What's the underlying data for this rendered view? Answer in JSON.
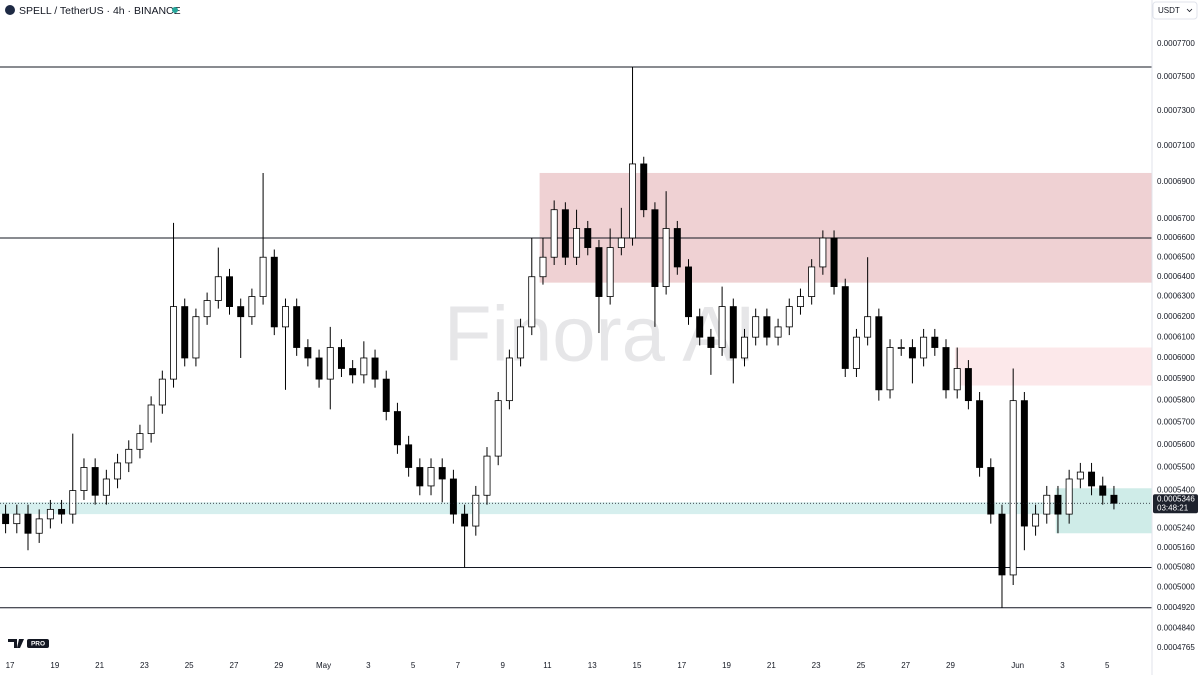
{
  "header": {
    "symbol": "SPELL / TetherUS · 4h · BINANCE",
    "currency": "USDT",
    "badge": "PRO"
  },
  "chart_data": {
    "type": "candlestick",
    "watermark": "Finora AI",
    "log_scale": true,
    "grid": false,
    "up_color": "#ffffff",
    "down_color": "#000000",
    "outline_color": "#000000",
    "xlim": [
      -0.5,
      102.4
    ],
    "xticks": [
      {
        "value": 0.4,
        "label": "17"
      },
      {
        "value": 4.4,
        "label": "19"
      },
      {
        "value": 8.4,
        "label": "21"
      },
      {
        "value": 12.4,
        "label": "23"
      },
      {
        "value": 16.4,
        "label": "25"
      },
      {
        "value": 20.4,
        "label": "27"
      },
      {
        "value": 24.4,
        "label": "29"
      },
      {
        "value": 28.4,
        "label": "May"
      },
      {
        "value": 32.4,
        "label": "3"
      },
      {
        "value": 36.4,
        "label": "5"
      },
      {
        "value": 40.4,
        "label": "7"
      },
      {
        "value": 44.4,
        "label": "9"
      },
      {
        "value": 48.4,
        "label": "11"
      },
      {
        "value": 52.4,
        "label": "13"
      },
      {
        "value": 56.4,
        "label": "15"
      },
      {
        "value": 60.4,
        "label": "17"
      },
      {
        "value": 64.4,
        "label": "19"
      },
      {
        "value": 68.4,
        "label": "21"
      },
      {
        "value": 72.4,
        "label": "23"
      },
      {
        "value": 76.4,
        "label": "25"
      },
      {
        "value": 80.4,
        "label": "27"
      },
      {
        "value": 84.4,
        "label": "29"
      },
      {
        "value": 90.4,
        "label": "Jun"
      },
      {
        "value": 94.4,
        "label": "3"
      },
      {
        "value": 98.4,
        "label": "5"
      }
    ],
    "ylim": [
      0.000472,
      0.0007848
    ],
    "yticks": [
      {
        "value": 0.00077,
        "label": "0.0007700"
      },
      {
        "value": 0.00075,
        "label": "0.0007500"
      },
      {
        "value": 0.00073,
        "label": "0.0007300"
      },
      {
        "value": 0.00071,
        "label": "0.0007100"
      },
      {
        "value": 0.00069,
        "label": "0.0006900"
      },
      {
        "value": 0.00067,
        "label": "0.0006700"
      },
      {
        "value": 0.00066,
        "label": "0.0006600"
      },
      {
        "value": 0.00065,
        "label": "0.0006500"
      },
      {
        "value": 0.00064,
        "label": "0.0006400"
      },
      {
        "value": 0.00063,
        "label": "0.0006300"
      },
      {
        "value": 0.00062,
        "label": "0.0006200"
      },
      {
        "value": 0.00061,
        "label": "0.0006100"
      },
      {
        "value": 0.0006,
        "label": "0.0006000"
      },
      {
        "value": 0.00059,
        "label": "0.0005900"
      },
      {
        "value": 0.00058,
        "label": "0.0005800"
      },
      {
        "value": 0.00057,
        "label": "0.0005700"
      },
      {
        "value": 0.00056,
        "label": "0.0005600"
      },
      {
        "value": 0.00055,
        "label": "0.0005500"
      },
      {
        "value": 0.00054,
        "label": "0.0005400"
      },
      {
        "value": 0.000524,
        "label": "0.0005240"
      },
      {
        "value": 0.000516,
        "label": "0.0005160"
      },
      {
        "value": 0.000508,
        "label": "0.0005080"
      },
      {
        "value": 0.0005,
        "label": "0.0005000"
      },
      {
        "value": 0.000492,
        "label": "0.0004920"
      },
      {
        "value": 0.000484,
        "label": "0.0004840"
      },
      {
        "value": 0.0004765,
        "label": "0.0004765"
      }
    ],
    "open": [
      0.00053,
      0.000526,
      0.00053,
      0.000522,
      0.000528,
      0.000532,
      0.00053,
      0.00054,
      0.00055,
      0.000538,
      0.000545,
      0.000552,
      0.000558,
      0.000565,
      0.000578,
      0.00059,
      0.000625,
      0.0006,
      0.00062,
      0.000628,
      0.00064,
      0.000625,
      0.00062,
      0.00063,
      0.00065,
      0.000615,
      0.000625,
      0.000605,
      0.0006,
      0.00059,
      0.000605,
      0.000595,
      0.000592,
      0.0006,
      0.00059,
      0.000575,
      0.00056,
      0.00055,
      0.000542,
      0.00055,
      0.000545,
      0.00053,
      0.000525,
      0.000538,
      0.000555,
      0.00058,
      0.0006,
      0.000615,
      0.00064,
      0.00065,
      0.000675,
      0.00065,
      0.000665,
      0.000655,
      0.00063,
      0.000655,
      0.00066,
      0.0007,
      0.000675,
      0.000635,
      0.000665,
      0.000645,
      0.00062,
      0.00061,
      0.000605,
      0.000625,
      0.0006,
      0.00061,
      0.00062,
      0.00061,
      0.000615,
      0.000625,
      0.00063,
      0.000645,
      0.00066,
      0.000635,
      0.000595,
      0.00061,
      0.00062,
      0.000585,
      0.000605,
      0.000605,
      0.0006,
      0.00061,
      0.000605,
      0.000585,
      0.000595,
      0.00058,
      0.00055,
      0.00053,
      0.000505,
      0.00058,
      0.000525,
      0.00053,
      0.000538,
      0.00053,
      0.000545,
      0.000548,
      0.000542,
      0.000538
    ],
    "high": [
      0.000534,
      0.000534,
      0.000534,
      0.000532,
      0.000536,
      0.000536,
      0.000565,
      0.000554,
      0.000554,
      0.000549,
      0.000556,
      0.000562,
      0.000569,
      0.000582,
      0.000594,
      0.000668,
      0.000629,
      0.000624,
      0.000632,
      0.000655,
      0.000644,
      0.000629,
      0.000634,
      0.000695,
      0.000654,
      0.000629,
      0.000629,
      0.000609,
      0.000604,
      0.000615,
      0.000609,
      0.000599,
      0.000608,
      0.000604,
      0.000594,
      0.000579,
      0.000564,
      0.000554,
      0.000554,
      0.000554,
      0.000549,
      0.000534,
      0.000542,
      0.000559,
      0.000584,
      0.000604,
      0.000619,
      0.00066,
      0.00066,
      0.00068,
      0.000679,
      0.000675,
      0.000669,
      0.000659,
      0.000665,
      0.000676,
      0.000756,
      0.000704,
      0.000679,
      0.000685,
      0.000669,
      0.000649,
      0.000624,
      0.000614,
      0.000635,
      0.000629,
      0.000614,
      0.000624,
      0.000624,
      0.000619,
      0.000629,
      0.000634,
      0.000649,
      0.000664,
      0.000664,
      0.000639,
      0.000614,
      0.00065,
      0.000624,
      0.000609,
      0.000609,
      0.000609,
      0.000614,
      0.000614,
      0.000609,
      0.000605,
      0.000599,
      0.000584,
      0.000554,
      0.000534,
      0.000595,
      0.000584,
      0.000534,
      0.000542,
      0.000542,
      0.000549,
      0.000552,
      0.000552,
      0.000546,
      0.000542
    ],
    "low": [
      0.000522,
      0.000522,
      0.000515,
      0.000518,
      0.000524,
      0.000526,
      0.000526,
      0.000536,
      0.000534,
      0.000534,
      0.000541,
      0.000548,
      0.000554,
      0.000561,
      0.000574,
      0.000586,
      0.000596,
      0.000596,
      0.000616,
      0.000624,
      0.000621,
      0.0006,
      0.000616,
      0.000626,
      0.000611,
      0.000585,
      0.000601,
      0.000596,
      0.000586,
      0.000576,
      0.000591,
      0.000588,
      0.000588,
      0.000586,
      0.000571,
      0.000556,
      0.000546,
      0.000538,
      0.000538,
      0.000535,
      0.000526,
      0.000508,
      0.000521,
      0.000534,
      0.000551,
      0.000576,
      0.000596,
      0.000611,
      0.000636,
      0.000646,
      0.000646,
      0.000646,
      0.000651,
      0.000612,
      0.000626,
      0.000651,
      0.000656,
      0.000671,
      0.000615,
      0.000631,
      0.000641,
      0.000616,
      0.000606,
      0.000592,
      0.000601,
      0.000588,
      0.000596,
      0.000606,
      0.000606,
      0.000606,
      0.000611,
      0.000621,
      0.000626,
      0.000641,
      0.000631,
      0.000591,
      0.000591,
      0.000606,
      0.00058,
      0.000581,
      0.000601,
      0.000588,
      0.000596,
      0.000601,
      0.000581,
      0.000581,
      0.000576,
      0.000546,
      0.000526,
      0.000492,
      0.000501,
      0.000515,
      0.000521,
      0.000526,
      0.000522,
      0.000526,
      0.000541,
      0.000538,
      0.000534,
      0.000532
    ],
    "close": [
      0.000526,
      0.00053,
      0.000522,
      0.000528,
      0.000532,
      0.00053,
      0.00054,
      0.00055,
      0.000538,
      0.000545,
      0.000552,
      0.000558,
      0.000565,
      0.000578,
      0.00059,
      0.000625,
      0.0006,
      0.00062,
      0.000628,
      0.00064,
      0.000625,
      0.00062,
      0.00063,
      0.00065,
      0.000615,
      0.000625,
      0.000605,
      0.0006,
      0.00059,
      0.000605,
      0.000595,
      0.000592,
      0.0006,
      0.00059,
      0.000575,
      0.00056,
      0.00055,
      0.000542,
      0.00055,
      0.000545,
      0.00053,
      0.000525,
      0.000538,
      0.000555,
      0.00058,
      0.0006,
      0.000615,
      0.00064,
      0.00065,
      0.000675,
      0.00065,
      0.000665,
      0.000655,
      0.00063,
      0.000655,
      0.00066,
      0.0007,
      0.000675,
      0.000635,
      0.000665,
      0.000645,
      0.00062,
      0.00061,
      0.000605,
      0.000625,
      0.0006,
      0.00061,
      0.00062,
      0.00061,
      0.000615,
      0.000625,
      0.00063,
      0.000645,
      0.00066,
      0.000635,
      0.000595,
      0.00061,
      0.00062,
      0.000585,
      0.000605,
      0.000605,
      0.0006,
      0.00061,
      0.000605,
      0.000585,
      0.000595,
      0.00058,
      0.00055,
      0.00053,
      0.000505,
      0.00058,
      0.000525,
      0.00053,
      0.000538,
      0.00053,
      0.000545,
      0.000548,
      0.000542,
      0.000538,
      0.0005346
    ],
    "levels": [
      0.000756,
      0.00066,
      0.000508,
      0.000492
    ],
    "zones": [
      {
        "start": 47.7,
        "top": 0.000695,
        "bottom": 0.000637,
        "color": "#efd1d3"
      },
      {
        "start": 84.8,
        "top": 0.000605,
        "bottom": 0.000587,
        "color": "#fce8ea"
      },
      {
        "start": -0.5,
        "top": 0.000535,
        "bottom": 0.00053,
        "color": "#d6efee"
      },
      {
        "start": 93.8,
        "top": 0.000541,
        "bottom": 0.000522,
        "color": "#cfece8"
      }
    ],
    "current_price": {
      "value": 0.0005346,
      "label": "0.0005346",
      "countdown": "03:48:21"
    }
  }
}
